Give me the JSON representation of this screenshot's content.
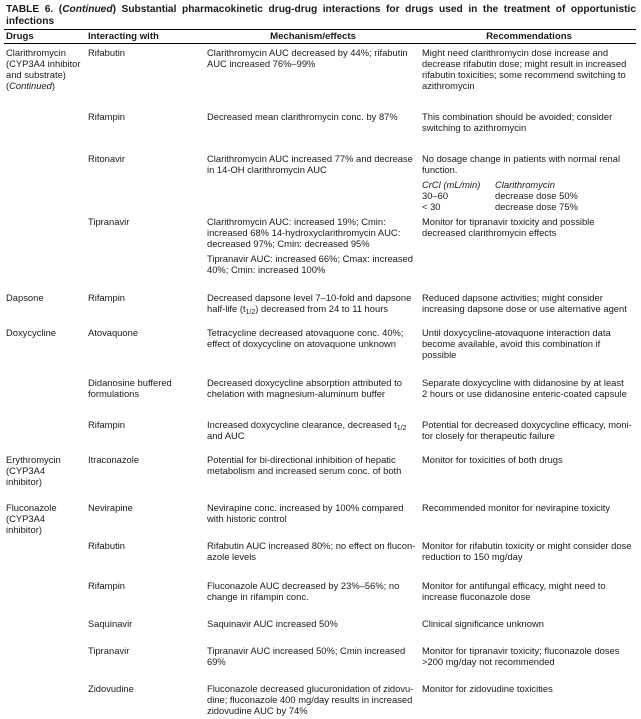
{
  "title": {
    "prefix": "TABLE 6. (",
    "continued": "Continued",
    "suffix": ") Substantial pharmacokinetic drug-drug interactions for drugs used in the treatment of opportunistic infections"
  },
  "headers": {
    "drugs": "Drugs",
    "interacting": "Interacting with",
    "mechanism": "Mechanism/effects",
    "recommendations": "Recommendations"
  },
  "rows": [
    {
      "drug": "Clarithromycin\n(CYP3A4 inhibitor\nand substrate)",
      "drug_note": "Continued",
      "interacting": "Rifabutin",
      "mechanism": "Clarithromycin AUC decreased by 44%; rifabutin\nAUC increased 76%–99%",
      "recommendation": "Might need clarithromycin dose increase and\ndecrease rifabutin dose; might result in increased\nrifabutin toxicities; some recommend switching to\nazithromycin"
    },
    {
      "interacting": "Rifampin",
      "mechanism": "Decreased mean clarithromycin conc. by 87%",
      "recommendation": "This combination should be avoided; consider\nswitching to azithromycin"
    },
    {
      "interacting": "Ritonavir",
      "mechanism": "Clarithromycin AUC increased 77% and decrease\nin 14-OH clarithromycin AUC",
      "recommendation": "No dosage change in patients with normal renal\nfunction.",
      "dose_table": {
        "headers": [
          "CrCl (mL/min)",
          "Clarithromycin"
        ],
        "rows": [
          [
            "30–60",
            "decrease dose 50%"
          ],
          [
            "< 30",
            "decrease dose 75%"
          ]
        ]
      }
    },
    {
      "interacting": "Tipranavir",
      "mechanism": "Clarithromycin AUC: increased 19%; Cmin:\nincreased 68% 14-hydroxyclarithromycin AUC:\ndecreased 97%; Cmin: decreased 95%",
      "mechanism_2": "Tipranavir AUC: increased 66%; Cmax: increased\n40%; Cmin: increased 100%",
      "recommendation": "Monitor for tipranavir toxicity and possible\ndecreased clarithromycin effects"
    },
    {
      "drug": "Dapsone",
      "interacting": "Rifampin",
      "mechanism": "Decreased dapsone level 7–10-fold and dapsone\nhalf-life (t",
      "mechanism_sub": "1/2",
      "mechanism_post": ") decreased from 24 to 11 hours",
      "recommendation": "Reduced dapsone activities; might consider\nincreasing dapsone dose or use alternative agent"
    },
    {
      "drug": "Doxycycline",
      "interacting": "Atovaquone",
      "mechanism": "Tetracycline decreased atovaquone conc. 40%;\neffect of doxycycline on atovaquone unknown",
      "recommendation": "Until doxycycline-atovaquone interaction data\nbecome available, avoid this combination if\npossible"
    },
    {
      "interacting": "Didanosine buffered\nformulations",
      "mechanism": "Decreased doxycycline absorption attributed to\nchelation with magnesium-aluminum buffer",
      "recommendation": "Separate doxycycline with didanosine by at least\n2 hours or use didanosine enteric-coated capsule"
    },
    {
      "interacting": "Rifampin",
      "mechanism": "Increased doxycycline clearance, decreased t",
      "mechanism_sub": "1/2",
      "mechanism_post": "\nand AUC",
      "recommendation": "Potential for decreased doxycycline efficacy, moni-\ntor closely for therapeutic failure"
    },
    {
      "drug": "Erythromycin\n(CYP3A4\ninhibitor)",
      "interacting": "Itraconazole",
      "mechanism": "Potential for bi-directional inhibition of hepatic\nmetabolism and increased serum conc. of both",
      "recommendation": "Monitor for toxicities of both drugs"
    },
    {
      "drug": "Fluconazole\n(CYP3A4\ninhibitor)",
      "interacting": "Nevirapine",
      "mechanism": "Nevirapine conc. increased by 100% compared\nwith historic control",
      "recommendation": "Recommended monitor for nevirapine toxicity"
    },
    {
      "interacting": "Rifabutin",
      "mechanism": "Rifabutin AUC increased 80%; no effect on flucon-\nazole levels",
      "recommendation": "Monitor for rifabutin toxicity or might consider dose\nreduction to 150 mg/day"
    },
    {
      "interacting": "Rifampin",
      "mechanism": "Fluconazole AUC decreased by 23%–56%; no\nchange in rifampin conc.",
      "recommendation": "Monitor for antifungal efficacy, might need to\nincrease fluconazole dose"
    },
    {
      "interacting": "Saquinavir",
      "mechanism": "Saquinavir AUC increased 50%",
      "recommendation": "Clinical significance unknown"
    },
    {
      "interacting": "Tipranavir",
      "mechanism": "Tipranavir AUC increased 50%; Cmin increased\n69%",
      "recommendation": "Monitor for tipranavir toxicity; fluconazole doses\n>200 mg/day not recommended"
    },
    {
      "interacting": "Zidovudine",
      "mechanism": "Fluconazole decreased glucuronidation of zidovu-\ndine; fluconazole 400 mg/day results in increased\nzidovudine AUC by 74%",
      "recommendation": "Monitor for zidovudine toxicities"
    }
  ]
}
